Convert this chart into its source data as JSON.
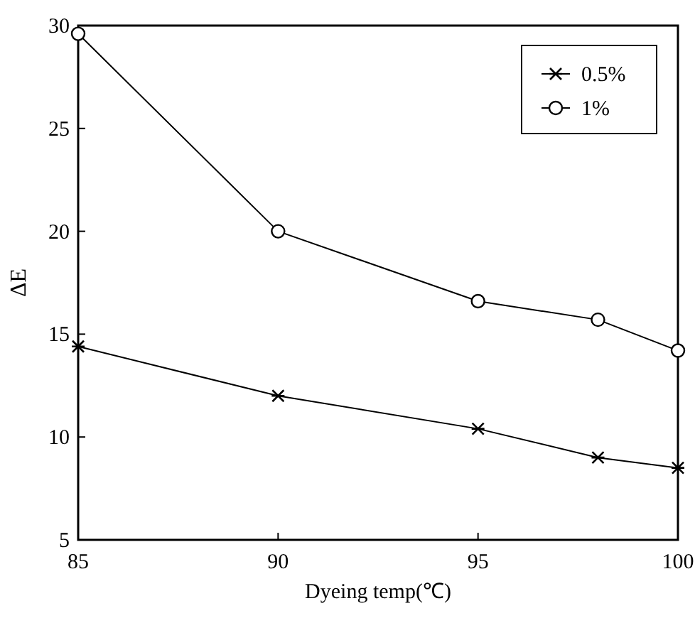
{
  "chart_data": {
    "type": "line",
    "xlabel": "Dyeing temp(℃)",
    "ylabel": "ΔE",
    "x": [
      85,
      90,
      95,
      98,
      100
    ],
    "series": [
      {
        "name": "0.5%",
        "color": "#000000",
        "marker": "cross",
        "values": [
          14.4,
          12.0,
          10.4,
          9.0,
          8.5
        ]
      },
      {
        "name": "1%",
        "color": "#000000",
        "marker": "circle",
        "values": [
          29.6,
          20.0,
          16.6,
          15.7,
          14.2
        ]
      }
    ],
    "xlim": [
      85,
      100
    ],
    "xticks": [
      85,
      90,
      95,
      100
    ],
    "ylim": [
      5,
      30
    ],
    "yticks": [
      5,
      10,
      15,
      20,
      25,
      30
    ],
    "grid": false,
    "legend": "top right",
    "line_style": "solid"
  }
}
